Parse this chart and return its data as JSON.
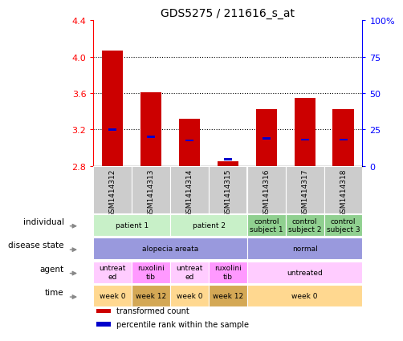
{
  "title": "GDS5275 / 211616_s_at",
  "samples": [
    "GSM1414312",
    "GSM1414313",
    "GSM1414314",
    "GSM1414315",
    "GSM1414316",
    "GSM1414317",
    "GSM1414318"
  ],
  "red_values": [
    4.07,
    3.61,
    3.32,
    2.85,
    3.42,
    3.55,
    3.42
  ],
  "blue_values": [
    3.2,
    3.12,
    3.08,
    2.87,
    3.1,
    3.09,
    3.09
  ],
  "ylim": [
    2.8,
    4.4
  ],
  "y2lim": [
    0,
    100
  ],
  "yticks": [
    2.8,
    3.2,
    3.6,
    4.0,
    4.4
  ],
  "y2ticks": [
    0,
    25,
    50,
    75,
    100
  ],
  "y2ticklabels": [
    "0",
    "25",
    "50",
    "75",
    "100%"
  ],
  "bar_width": 0.55,
  "bar_bottom": 2.8,
  "rows": [
    {
      "label": "individual",
      "groups": [
        {
          "cols": [
            0,
            1
          ],
          "text": "patient 1",
          "color": "#c8f0c8"
        },
        {
          "cols": [
            2,
            3
          ],
          "text": "patient 2",
          "color": "#c8f0c8"
        },
        {
          "cols": [
            4
          ],
          "text": "control\nsubject 1",
          "color": "#90d090"
        },
        {
          "cols": [
            5
          ],
          "text": "control\nsubject 2",
          "color": "#90d090"
        },
        {
          "cols": [
            6
          ],
          "text": "control\nsubject 3",
          "color": "#90d090"
        }
      ]
    },
    {
      "label": "disease state",
      "groups": [
        {
          "cols": [
            0,
            1,
            2,
            3
          ],
          "text": "alopecia areata",
          "color": "#9999dd"
        },
        {
          "cols": [
            4,
            5,
            6
          ],
          "text": "normal",
          "color": "#9999dd"
        }
      ]
    },
    {
      "label": "agent",
      "groups": [
        {
          "cols": [
            0
          ],
          "text": "untreat\ned",
          "color": "#ffccff"
        },
        {
          "cols": [
            1
          ],
          "text": "ruxolini\ntib",
          "color": "#ff99ff"
        },
        {
          "cols": [
            2
          ],
          "text": "untreat\ned",
          "color": "#ffccff"
        },
        {
          "cols": [
            3
          ],
          "text": "ruxolini\ntib",
          "color": "#ff99ff"
        },
        {
          "cols": [
            4,
            5,
            6
          ],
          "text": "untreated",
          "color": "#ffccff"
        }
      ]
    },
    {
      "label": "time",
      "groups": [
        {
          "cols": [
            0
          ],
          "text": "week 0",
          "color": "#ffd890"
        },
        {
          "cols": [
            1
          ],
          "text": "week 12",
          "color": "#d4a855"
        },
        {
          "cols": [
            2
          ],
          "text": "week 0",
          "color": "#ffd890"
        },
        {
          "cols": [
            3
          ],
          "text": "week 12",
          "color": "#d4a855"
        },
        {
          "cols": [
            4,
            5,
            6
          ],
          "text": "week 0",
          "color": "#ffd890"
        }
      ]
    }
  ],
  "legend": [
    {
      "color": "#cc0000",
      "label": "transformed count"
    },
    {
      "color": "#0000cc",
      "label": "percentile rank within the sample"
    }
  ],
  "sample_label_bg": "#cccccc",
  "chart_bg": "#ffffff"
}
